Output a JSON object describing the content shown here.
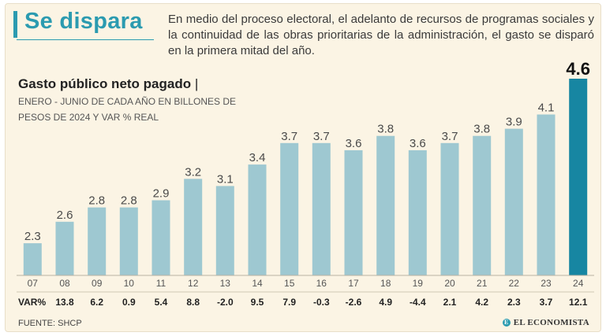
{
  "headline": "Se dispara",
  "deck": "En medio del proceso electoral, el adelanto de recursos de programas sociales y la continuidad de las obras prioritarias de la administración, el gasto se disparó en la primera mitad del año.",
  "chart_title": "Gasto público neto pagado",
  "chart_title_separator": "|",
  "chart_subtitle": "Enero - junio de cada año en billones de pesos de 2024 y var % real",
  "var_header": "VAR%",
  "source": "FUENTE: SHCP",
  "brand": {
    "icon": "E",
    "name": "EL ECONOMISTA"
  },
  "colors": {
    "accent": "#2b9bb0",
    "bar": "#9ec8d1",
    "bar_highlight": "#1786a2",
    "background": "#fbf4e4"
  },
  "chart_data": {
    "type": "bar",
    "title": "Gasto público neto pagado",
    "subtitle": "Enero - junio de cada año en billones de pesos de 2024 y var % real",
    "categories": [
      "07",
      "08",
      "09",
      "10",
      "11",
      "12",
      "13",
      "14",
      "15",
      "16",
      "17",
      "18",
      "19",
      "20",
      "21",
      "22",
      "23",
      "24"
    ],
    "values": [
      2.3,
      2.6,
      2.8,
      2.8,
      2.9,
      3.2,
      3.1,
      3.4,
      3.7,
      3.7,
      3.6,
      3.8,
      3.6,
      3.7,
      3.8,
      3.9,
      4.1,
      4.6
    ],
    "value_labels": [
      "2.3",
      "2.6",
      "2.8",
      "2.8",
      "2.9",
      "3.2",
      "3.1",
      "3.4",
      "3.7",
      "3.7",
      "3.6",
      "3.8",
      "3.6",
      "3.7",
      "3.8",
      "3.9",
      "4.1",
      "4.6"
    ],
    "var_pct_labels": [
      "13.8",
      "6.2",
      "0.9",
      "5.4",
      "8.8",
      "-2.0",
      "9.5",
      "7.9",
      "-0.3",
      "-2.6",
      "4.9",
      "-4.4",
      "2.1",
      "4.2",
      "2.3",
      "3.7",
      "12.1"
    ],
    "highlight_category": "24",
    "xlabel": "",
    "ylabel": "",
    "ylim": [
      1.85,
      4.6
    ],
    "grid": false
  }
}
